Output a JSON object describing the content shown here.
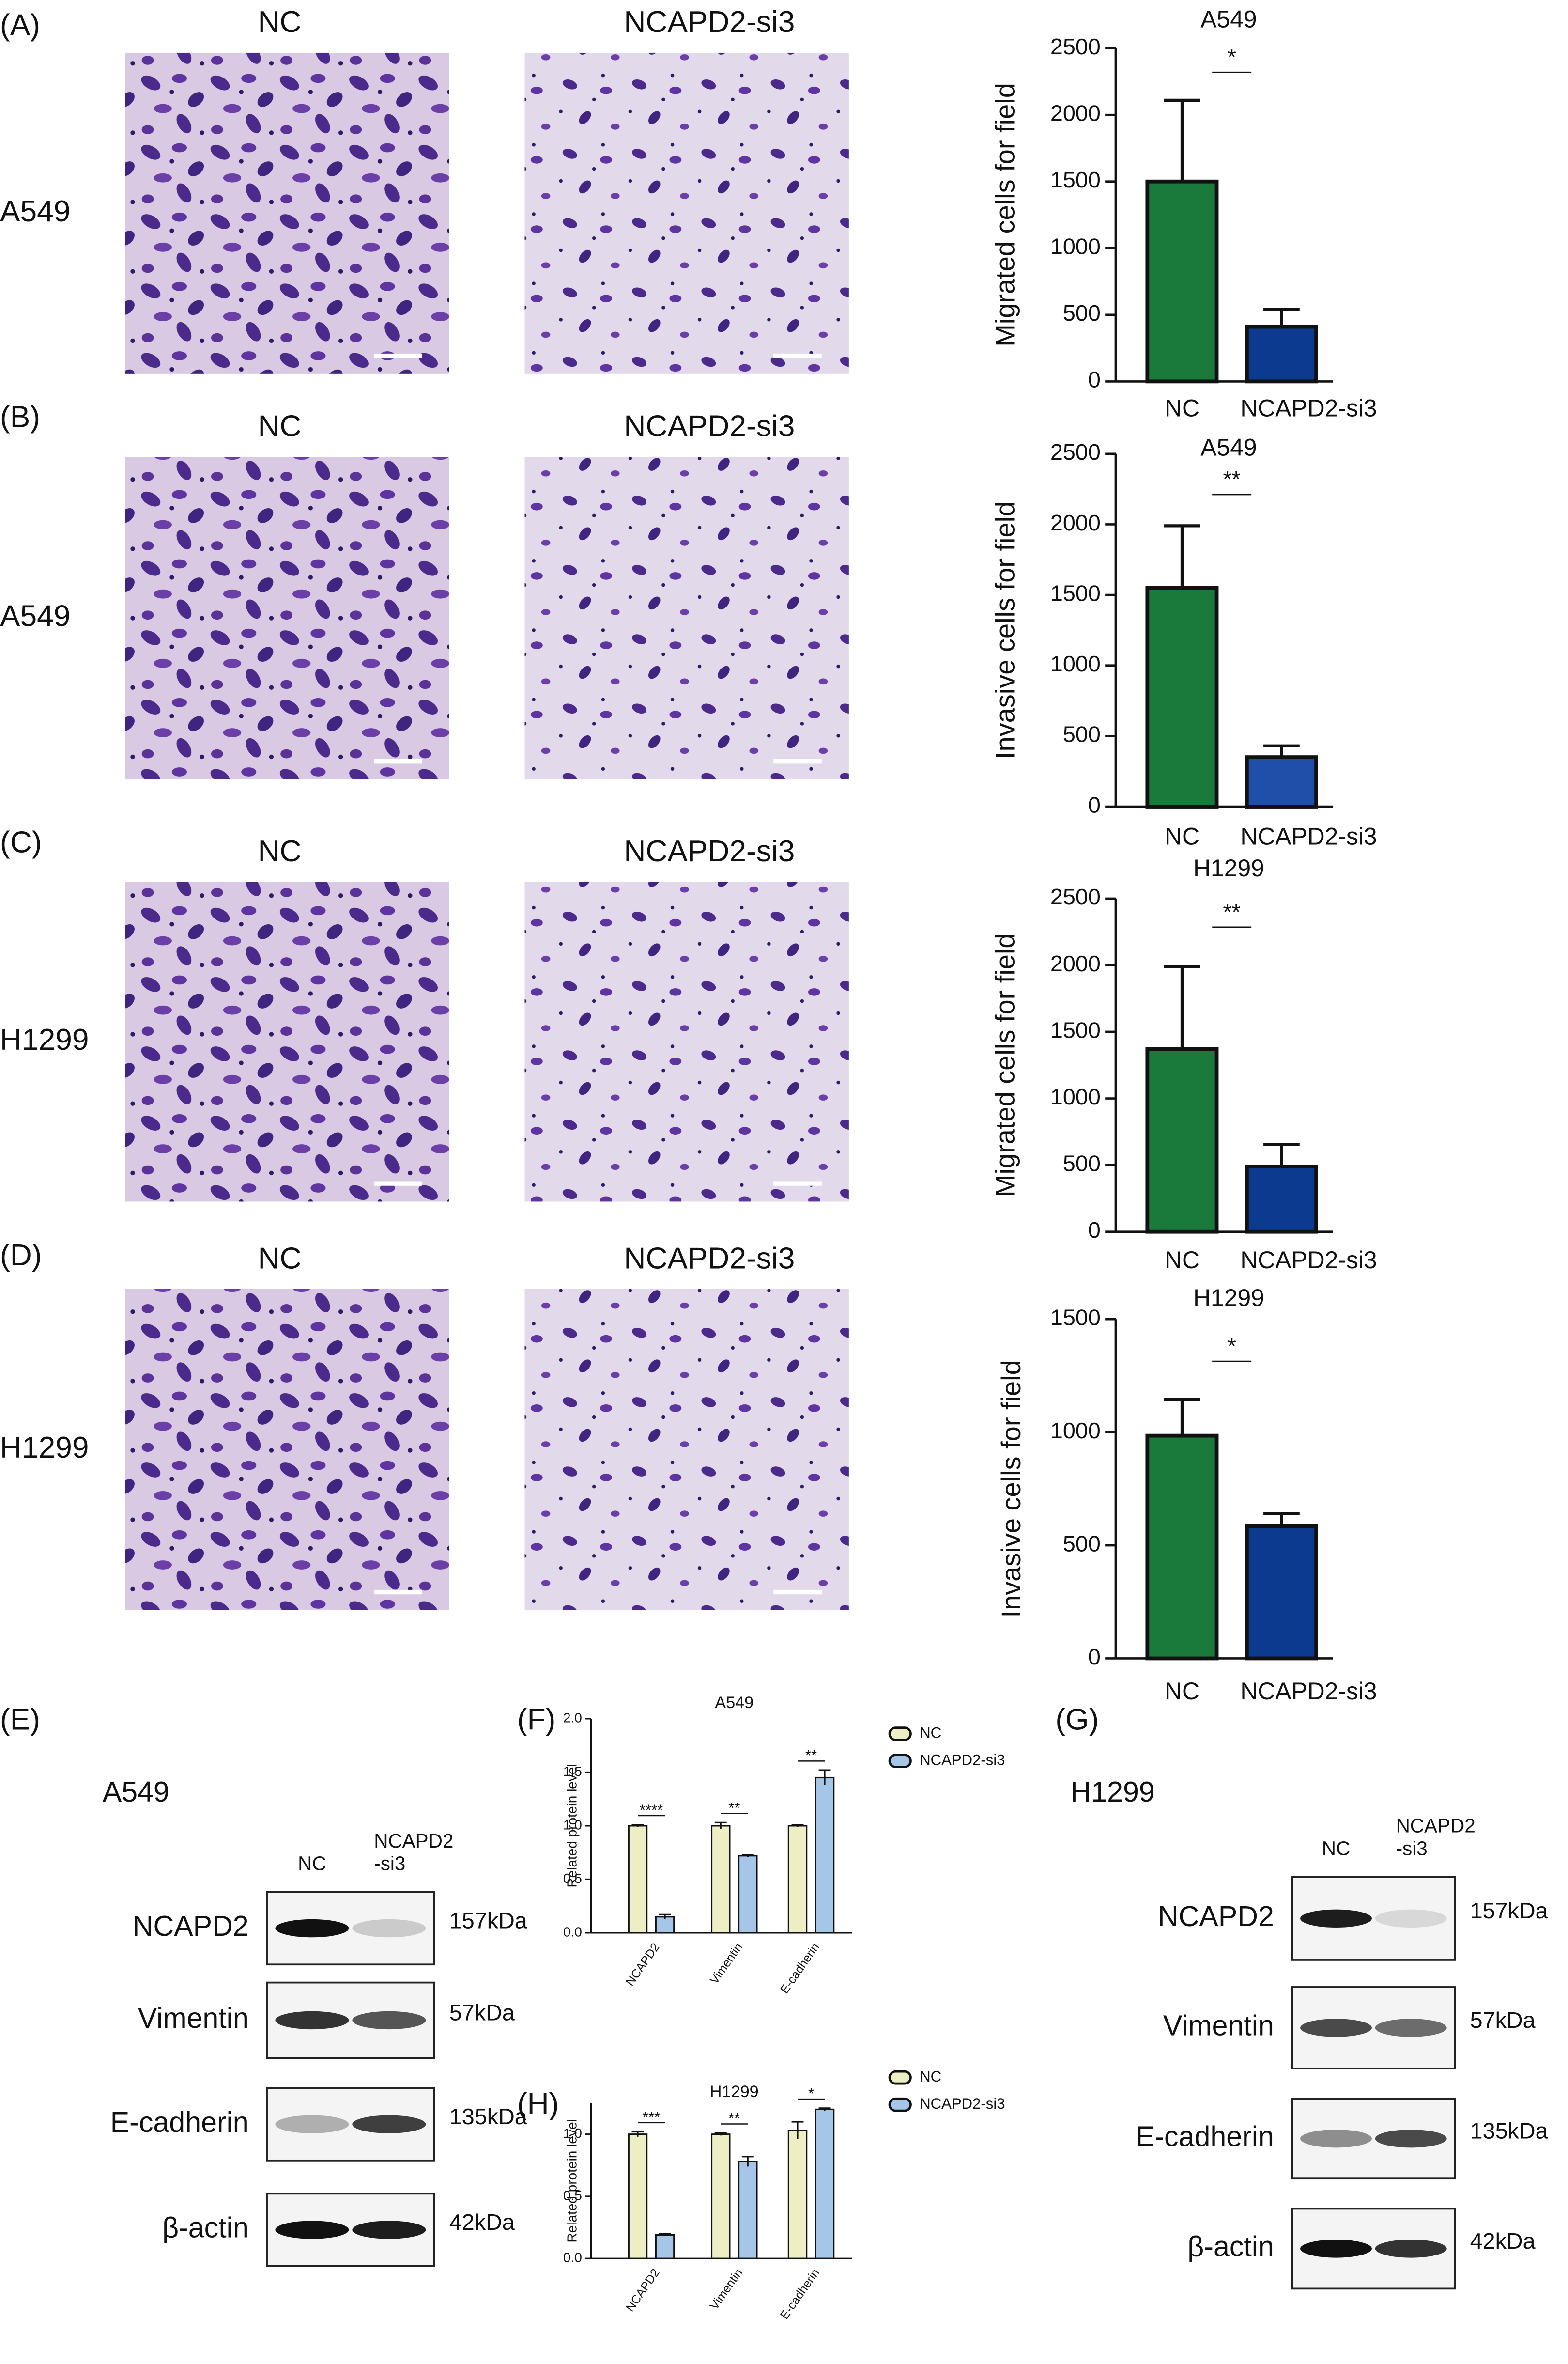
{
  "figure": {
    "panels": [
      {
        "label": "(A)",
        "row_label": "A549",
        "image_titles": [
          "NC",
          "NCAPD2-si3"
        ]
      },
      {
        "label": "(B)",
        "row_label": "A549",
        "image_titles": [
          "NC",
          "NCAPD2-si3"
        ]
      },
      {
        "label": "(C)",
        "row_label": "H1299",
        "image_titles": [
          "NC",
          "NCAPD2-si3"
        ]
      },
      {
        "label": "(D)",
        "row_label": "H1299",
        "image_titles": [
          "NC",
          "NCAPD2-si3"
        ]
      }
    ],
    "blots": [
      {
        "label": "(E)",
        "cell_line": "A549",
        "lane_labels": [
          [
            "NC"
          ],
          [
            "NCAPD2",
            "-si3"
          ]
        ],
        "rows": [
          {
            "protein": "NCAPD2",
            "size": "157kDa"
          },
          {
            "protein": "Vimentin",
            "size": "57kDa"
          },
          {
            "protein": "E-cadherin",
            "size": "135kDa"
          },
          {
            "protein": "β-actin",
            "size": "42kDa"
          }
        ]
      },
      {
        "label": "(G)",
        "cell_line": "H1299",
        "lane_labels": [
          [
            "NC"
          ],
          [
            "NCAPD2",
            "-si3"
          ]
        ],
        "rows": [
          {
            "protein": "NCAPD2",
            "size": "157kDa"
          },
          {
            "protein": "Vimentin",
            "size": "57kDa"
          },
          {
            "protein": "E-cadherin",
            "size": "135kDa"
          },
          {
            "protein": "β-actin",
            "size": "42kDa"
          }
        ]
      }
    ]
  },
  "chart_data": [
    {
      "type": "bar",
      "title": "A549",
      "ylabel": "Migrated cells for field",
      "categories": [
        "NC",
        "NCAPD2-si3"
      ],
      "values": [
        1500,
        410
      ],
      "errors": [
        610,
        130
      ],
      "colors": [
        "#1a7a3c",
        "#0b3a8e"
      ],
      "significance": "*",
      "ylim": [
        0,
        2500
      ],
      "yticks": [
        0,
        500,
        1000,
        1500,
        2000,
        2500
      ]
    },
    {
      "type": "bar",
      "title": "A549",
      "ylabel": "Invasive cells for field",
      "categories": [
        "NC",
        "NCAPD2-si3"
      ],
      "values": [
        1550,
        350
      ],
      "errors": [
        440,
        80
      ],
      "colors": [
        "#1a7a3c",
        "#1f4fa8"
      ],
      "significance": "**",
      "ylim": [
        0,
        2500
      ],
      "yticks": [
        0,
        500,
        1000,
        1500,
        2000,
        2500
      ]
    },
    {
      "type": "bar",
      "title": "H1299",
      "ylabel": "Migrated cells for field",
      "categories": [
        "NC",
        "NCAPD2-si3"
      ],
      "values": [
        1370,
        490
      ],
      "errors": [
        620,
        165
      ],
      "colors": [
        "#1a7a3c",
        "#0b3a8e"
      ],
      "significance": "**",
      "ylim": [
        0,
        2500
      ],
      "yticks": [
        0,
        500,
        1000,
        1500,
        2000,
        2500
      ]
    },
    {
      "type": "bar",
      "title": "H1299",
      "ylabel": "Invasive cells for field",
      "categories": [
        "NC",
        "NCAPD2-si3"
      ],
      "values": [
        985,
        585
      ],
      "errors": [
        160,
        55
      ],
      "colors": [
        "#1a7a3c",
        "#0b3a8e"
      ],
      "significance": "*",
      "ylim": [
        0,
        1500
      ],
      "yticks": [
        0,
        500,
        1000,
        1500
      ]
    },
    {
      "type": "grouped_bar",
      "panel_label": "(F)",
      "title": "A549",
      "ylabel": "Related protein level",
      "categories": [
        "NCAPD2",
        "Vimentin",
        "E-cadherin"
      ],
      "series": [
        {
          "name": "NC",
          "color": "#eeeec4",
          "values": [
            1.0,
            1.0,
            1.0
          ],
          "errors": [
            0.01,
            0.03,
            0.01
          ]
        },
        {
          "name": "NCAPD2-si3",
          "color": "#a6c6e8",
          "values": [
            0.15,
            0.72,
            1.45
          ],
          "errors": [
            0.02,
            0.01,
            0.07
          ]
        }
      ],
      "significance": [
        "****",
        "**",
        "**"
      ],
      "ylim": [
        0,
        2.0
      ],
      "yticks": [
        {
          "value": 0,
          "label": "0.0"
        },
        {
          "value": 0.5,
          "label": "0.5"
        },
        {
          "value": 1.0,
          "label": "1.0"
        },
        {
          "value": 1.5,
          "label": "1.5"
        },
        {
          "value": 2.0,
          "label": "2.0"
        }
      ]
    },
    {
      "type": "grouped_bar",
      "panel_label": "(H)",
      "title": "H1299",
      "ylabel": "Related protein level",
      "categories": [
        "NCAPD2",
        "Vimentin",
        "E-cadherin"
      ],
      "series": [
        {
          "name": "NC",
          "color": "#eeeec4",
          "values": [
            1.0,
            1.0,
            1.03
          ],
          "errors": [
            0.02,
            0.01,
            0.07
          ]
        },
        {
          "name": "NCAPD2-si3",
          "color": "#a6c6e8",
          "values": [
            0.19,
            0.78,
            1.2
          ],
          "errors": [
            0.01,
            0.04,
            0.01
          ]
        }
      ],
      "significance": [
        "***",
        "**",
        "*"
      ],
      "ylim": [
        0,
        1.25
      ],
      "yticks": [
        {
          "value": 0,
          "label": "0.0"
        },
        {
          "value": 0.5,
          "label": "0.5"
        },
        {
          "value": 1.0,
          "label": "1.0"
        }
      ]
    }
  ]
}
